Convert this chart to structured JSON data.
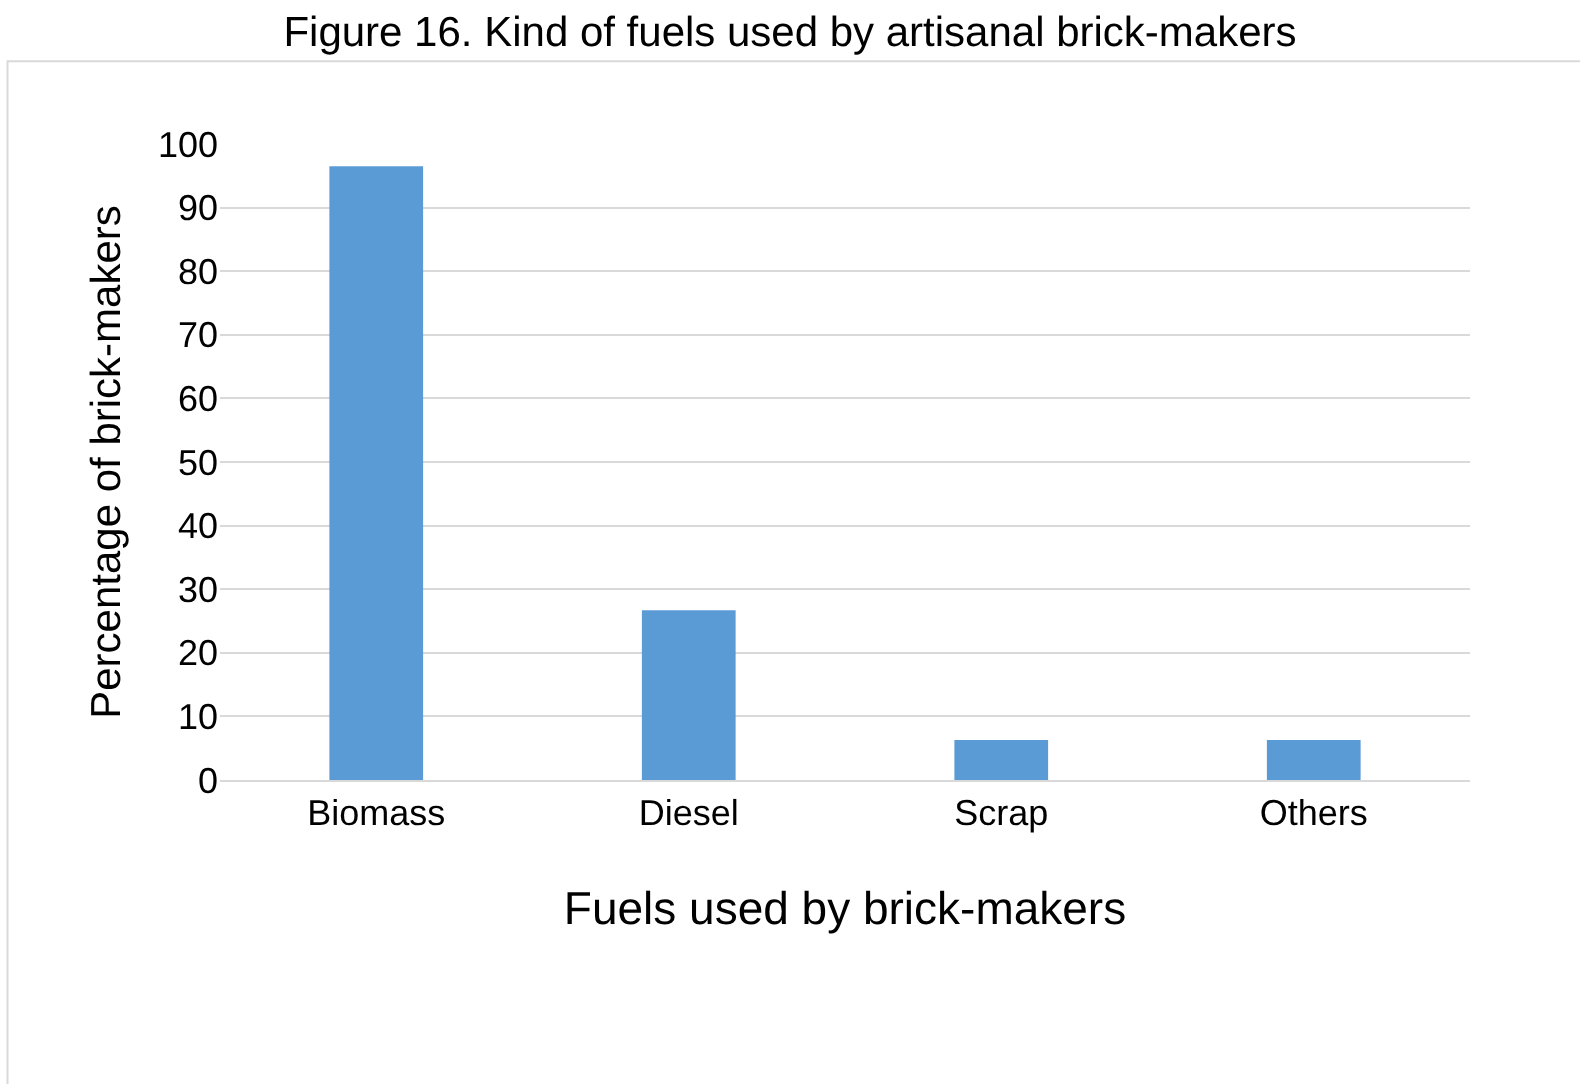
{
  "chart_data": {
    "type": "bar",
    "title": "Figure 16. Kind of fuels used by artisanal brick-makers",
    "xlabel": "Fuels used by brick-makers",
    "ylabel": "Percentage of brick-makers",
    "categories": [
      "Biomass",
      "Diesel",
      "Scrap",
      "Others"
    ],
    "values": [
      96.5,
      26.7,
      6.3,
      6.3
    ],
    "color": "#5b9bd5",
    "ylim": [
      0,
      100
    ],
    "yticks": [
      0,
      10,
      20,
      30,
      40,
      50,
      60,
      70,
      80,
      90,
      100
    ],
    "grid": "y",
    "legend": false
  }
}
